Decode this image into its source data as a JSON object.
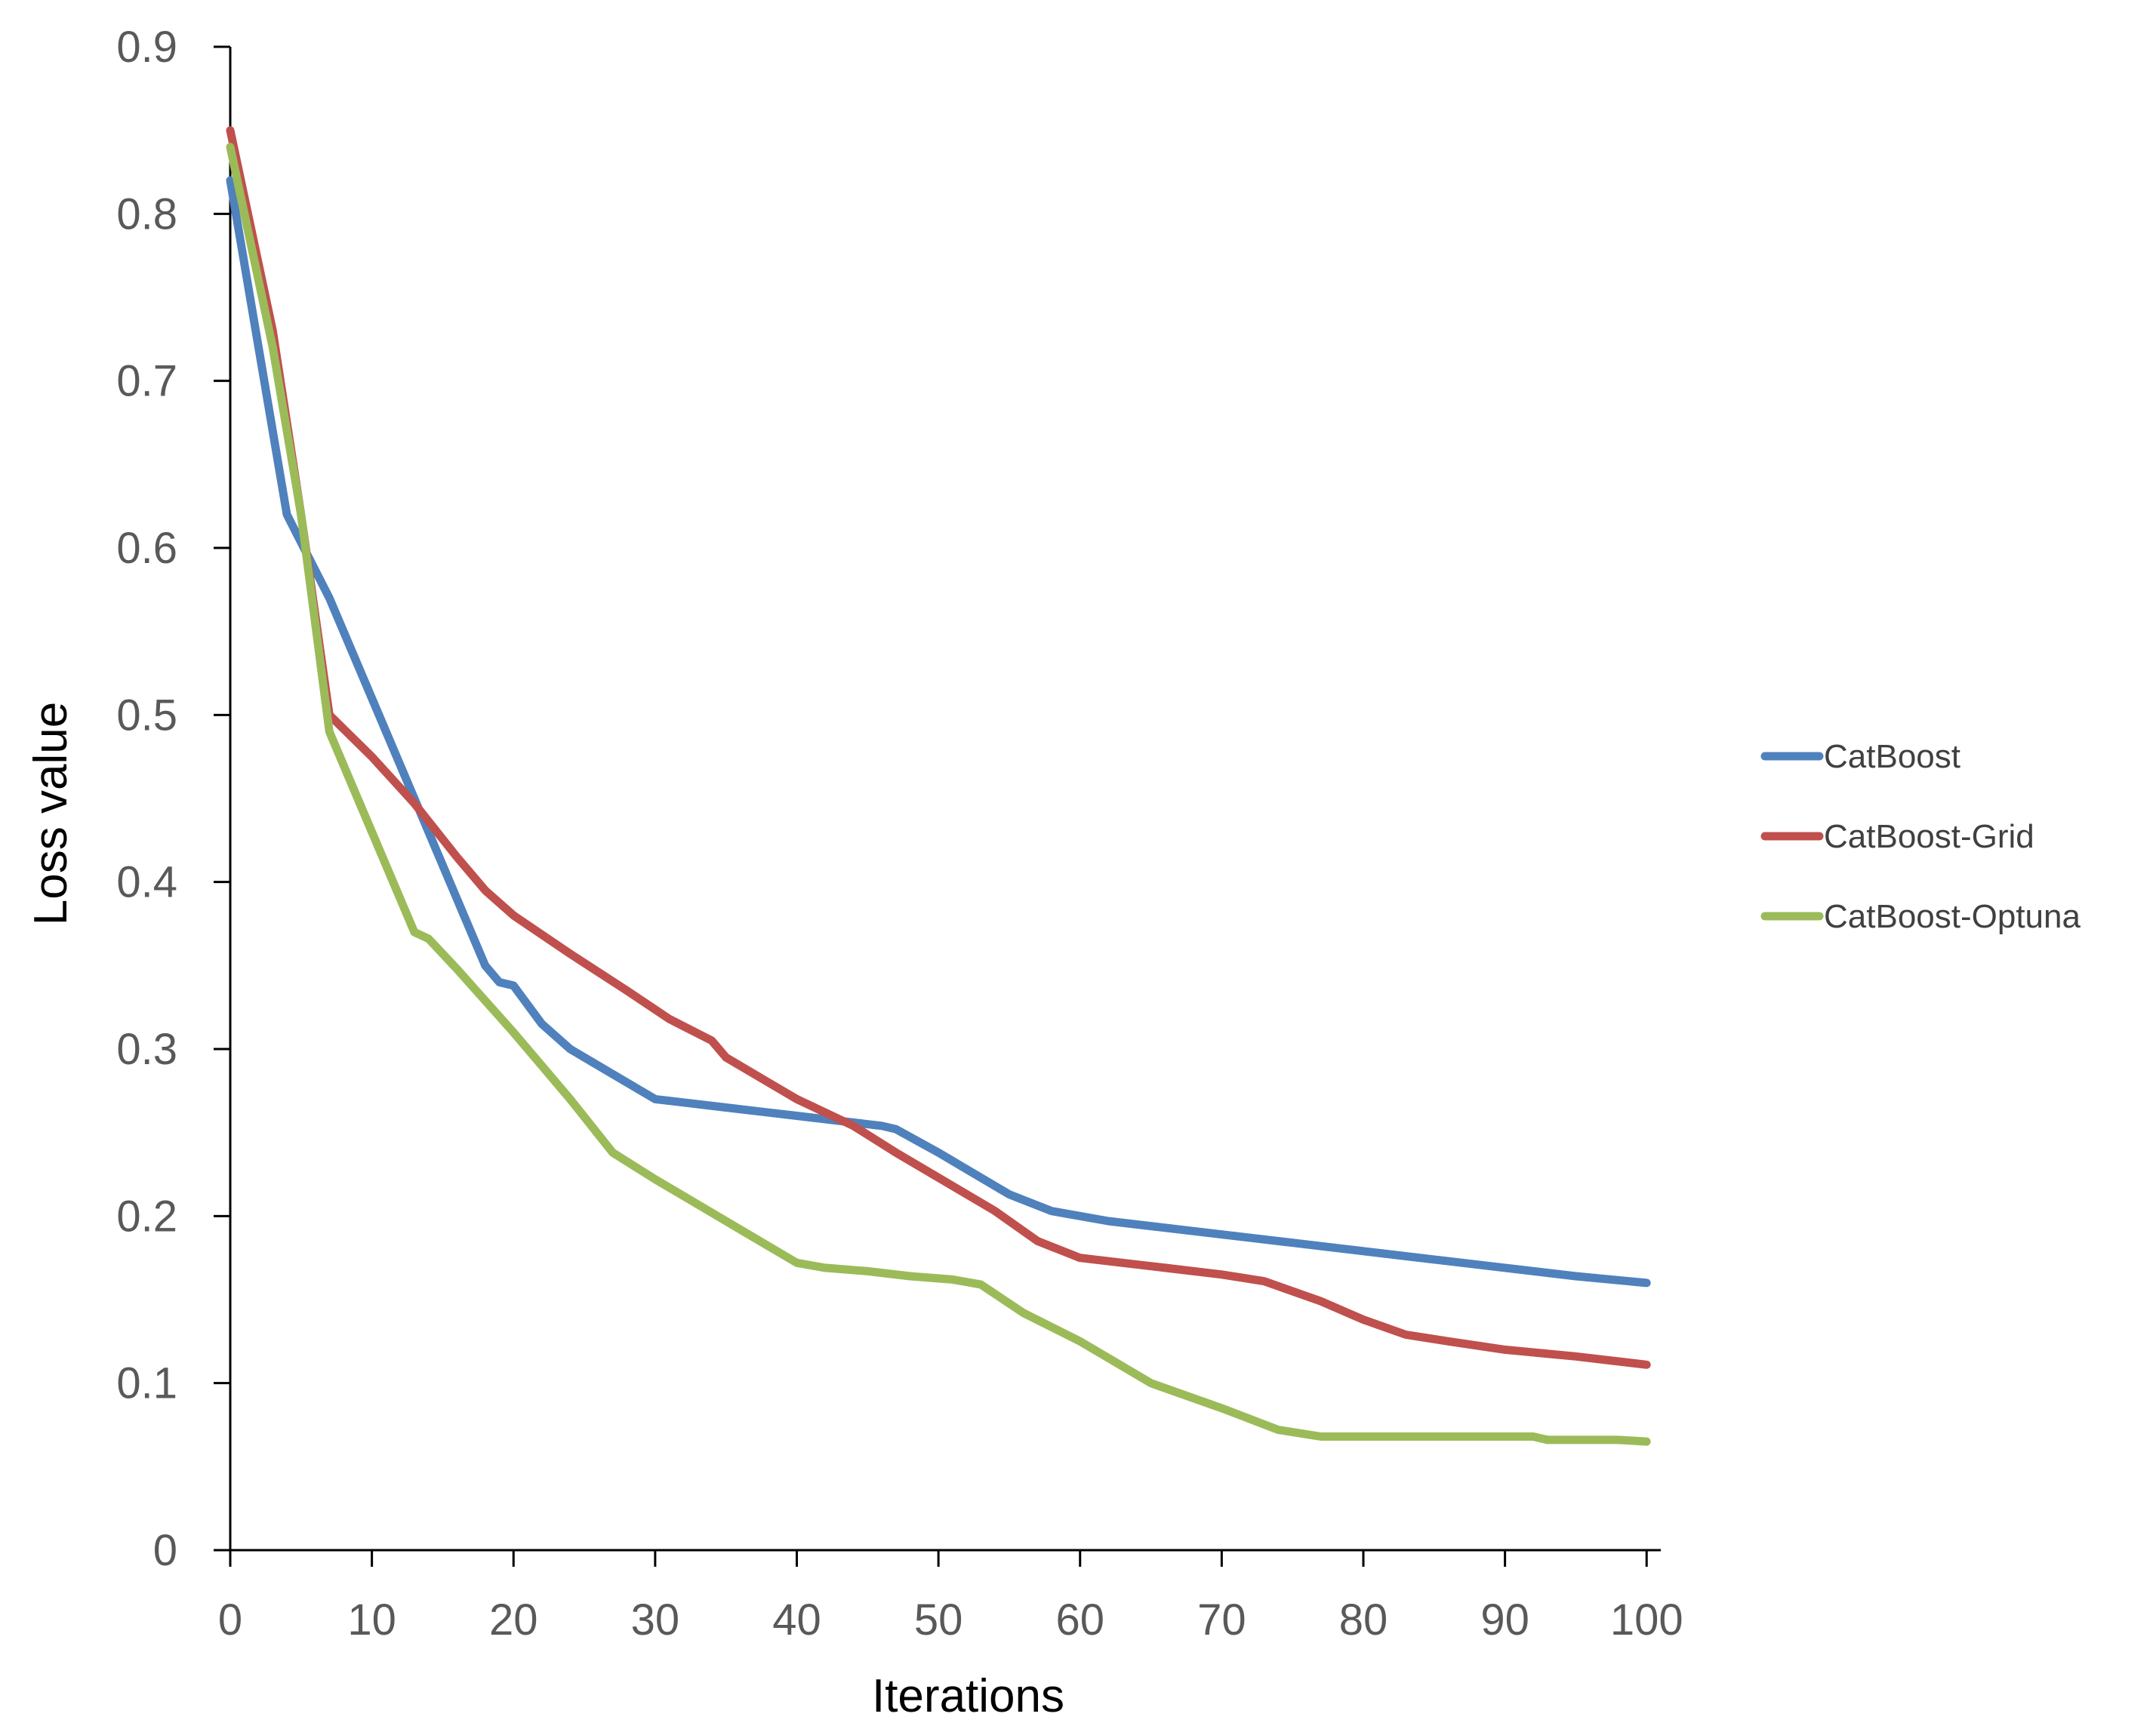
{
  "chart_data": {
    "type": "line",
    "title": "",
    "xlabel": "Iterations",
    "ylabel": "Loss value",
    "xlim": [
      0,
      101
    ],
    "ylim": [
      0,
      0.9
    ],
    "x_ticks": [
      0,
      10,
      20,
      30,
      40,
      50,
      60,
      70,
      80,
      90,
      100
    ],
    "x_tick_labels": [
      "0",
      "10",
      "20",
      "30",
      "40",
      "50",
      "60",
      "70",
      "80",
      "90",
      "100"
    ],
    "y_ticks": [
      0,
      0.1,
      0.2,
      0.3,
      0.4,
      0.5,
      0.6,
      0.7,
      0.8,
      0.9
    ],
    "y_tick_labels": [
      "0",
      "0.1",
      "0.2",
      "0.3",
      "0.4",
      "0.5",
      "0.6",
      "0.7",
      "0.8",
      "0.9"
    ],
    "grid": false,
    "legend_position": "right",
    "series": [
      {
        "name": "CatBoost",
        "color": "#4F81BD",
        "points": [
          [
            0,
            0.82
          ],
          [
            4,
            0.62
          ],
          [
            7,
            0.57
          ],
          [
            10,
            0.51
          ],
          [
            13,
            0.45
          ],
          [
            16,
            0.39
          ],
          [
            18,
            0.35
          ],
          [
            19,
            0.34
          ],
          [
            20,
            0.338
          ],
          [
            22,
            0.315
          ],
          [
            24,
            0.3
          ],
          [
            27,
            0.285
          ],
          [
            30,
            0.27
          ],
          [
            32,
            0.268
          ],
          [
            35,
            0.265
          ],
          [
            40,
            0.26
          ],
          [
            43,
            0.257
          ],
          [
            46,
            0.254
          ],
          [
            47,
            0.252
          ],
          [
            50,
            0.238
          ],
          [
            55,
            0.213
          ],
          [
            58,
            0.203
          ],
          [
            62,
            0.197
          ],
          [
            66,
            0.193
          ],
          [
            70,
            0.189
          ],
          [
            75,
            0.184
          ],
          [
            80,
            0.179
          ],
          [
            85,
            0.174
          ],
          [
            90,
            0.169
          ],
          [
            95,
            0.164
          ],
          [
            100,
            0.16
          ]
        ]
      },
      {
        "name": "CatBoost-Grid",
        "color": "#C0504D",
        "points": [
          [
            0,
            0.85
          ],
          [
            3,
            0.73
          ],
          [
            5,
            0.62
          ],
          [
            7,
            0.5
          ],
          [
            10,
            0.475
          ],
          [
            13,
            0.447
          ],
          [
            16,
            0.415
          ],
          [
            18,
            0.395
          ],
          [
            20,
            0.38
          ],
          [
            24,
            0.357
          ],
          [
            28,
            0.335
          ],
          [
            31,
            0.318
          ],
          [
            34,
            0.305
          ],
          [
            35,
            0.295
          ],
          [
            38,
            0.28
          ],
          [
            40,
            0.27
          ],
          [
            44,
            0.254
          ],
          [
            47,
            0.238
          ],
          [
            50,
            0.223
          ],
          [
            54,
            0.203
          ],
          [
            57,
            0.185
          ],
          [
            60,
            0.175
          ],
          [
            63,
            0.172
          ],
          [
            66,
            0.169
          ],
          [
            70,
            0.165
          ],
          [
            73,
            0.161
          ],
          [
            77,
            0.149
          ],
          [
            80,
            0.138
          ],
          [
            83,
            0.129
          ],
          [
            86,
            0.125
          ],
          [
            90,
            0.12
          ],
          [
            95,
            0.116
          ],
          [
            100,
            0.111
          ]
        ]
      },
      {
        "name": "CatBoost-Optuna",
        "color": "#9BBB59",
        "points": [
          [
            0,
            0.84
          ],
          [
            3,
            0.72
          ],
          [
            5,
            0.62
          ],
          [
            7,
            0.49
          ],
          [
            10,
            0.43
          ],
          [
            13,
            0.37
          ],
          [
            14,
            0.366
          ],
          [
            16,
            0.348
          ],
          [
            20,
            0.31
          ],
          [
            24,
            0.27
          ],
          [
            27,
            0.238
          ],
          [
            30,
            0.222
          ],
          [
            33,
            0.207
          ],
          [
            37,
            0.187
          ],
          [
            40,
            0.172
          ],
          [
            42,
            0.169
          ],
          [
            45,
            0.167
          ],
          [
            48,
            0.164
          ],
          [
            51,
            0.162
          ],
          [
            53,
            0.159
          ],
          [
            56,
            0.142
          ],
          [
            60,
            0.125
          ],
          [
            65,
            0.1
          ],
          [
            70,
            0.085
          ],
          [
            74,
            0.072
          ],
          [
            77,
            0.068
          ],
          [
            85,
            0.068
          ],
          [
            92,
            0.068
          ],
          [
            93,
            0.066
          ],
          [
            98,
            0.066
          ],
          [
            100,
            0.065
          ]
        ]
      }
    ]
  }
}
